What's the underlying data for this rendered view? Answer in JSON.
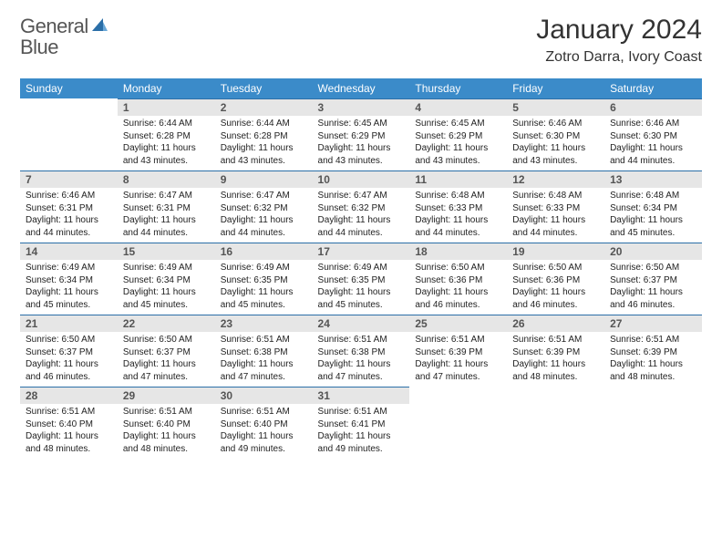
{
  "brand": {
    "word1": "General",
    "word2": "Blue"
  },
  "title": "January 2024",
  "location": "Zotro Darra, Ivory Coast",
  "colors": {
    "header_bg": "#3b8bc9",
    "header_text": "#ffffff",
    "daynum_bg": "#e6e6e6",
    "daynum_text": "#555555",
    "rule": "#2b6fa8",
    "brand_gray": "#555555",
    "brand_blue": "#2b7bbf",
    "body_text": "#222222",
    "page_bg": "#ffffff"
  },
  "typography": {
    "month_title_pt": 30,
    "location_pt": 16,
    "weekday_pt": 12,
    "daynum_pt": 12,
    "body_pt": 10,
    "logo_pt": 22
  },
  "weekdays": [
    "Sunday",
    "Monday",
    "Tuesday",
    "Wednesday",
    "Thursday",
    "Friday",
    "Saturday"
  ],
  "layout": {
    "first_weekday_index": 1,
    "days_in_month": 31,
    "rows": 5,
    "cols": 7
  },
  "days": [
    {
      "n": 1,
      "sunrise": "6:44 AM",
      "sunset": "6:28 PM",
      "daylight": "11 hours and 43 minutes."
    },
    {
      "n": 2,
      "sunrise": "6:44 AM",
      "sunset": "6:28 PM",
      "daylight": "11 hours and 43 minutes."
    },
    {
      "n": 3,
      "sunrise": "6:45 AM",
      "sunset": "6:29 PM",
      "daylight": "11 hours and 43 minutes."
    },
    {
      "n": 4,
      "sunrise": "6:45 AM",
      "sunset": "6:29 PM",
      "daylight": "11 hours and 43 minutes."
    },
    {
      "n": 5,
      "sunrise": "6:46 AM",
      "sunset": "6:30 PM",
      "daylight": "11 hours and 43 minutes."
    },
    {
      "n": 6,
      "sunrise": "6:46 AM",
      "sunset": "6:30 PM",
      "daylight": "11 hours and 44 minutes."
    },
    {
      "n": 7,
      "sunrise": "6:46 AM",
      "sunset": "6:31 PM",
      "daylight": "11 hours and 44 minutes."
    },
    {
      "n": 8,
      "sunrise": "6:47 AM",
      "sunset": "6:31 PM",
      "daylight": "11 hours and 44 minutes."
    },
    {
      "n": 9,
      "sunrise": "6:47 AM",
      "sunset": "6:32 PM",
      "daylight": "11 hours and 44 minutes."
    },
    {
      "n": 10,
      "sunrise": "6:47 AM",
      "sunset": "6:32 PM",
      "daylight": "11 hours and 44 minutes."
    },
    {
      "n": 11,
      "sunrise": "6:48 AM",
      "sunset": "6:33 PM",
      "daylight": "11 hours and 44 minutes."
    },
    {
      "n": 12,
      "sunrise": "6:48 AM",
      "sunset": "6:33 PM",
      "daylight": "11 hours and 44 minutes."
    },
    {
      "n": 13,
      "sunrise": "6:48 AM",
      "sunset": "6:34 PM",
      "daylight": "11 hours and 45 minutes."
    },
    {
      "n": 14,
      "sunrise": "6:49 AM",
      "sunset": "6:34 PM",
      "daylight": "11 hours and 45 minutes."
    },
    {
      "n": 15,
      "sunrise": "6:49 AM",
      "sunset": "6:34 PM",
      "daylight": "11 hours and 45 minutes."
    },
    {
      "n": 16,
      "sunrise": "6:49 AM",
      "sunset": "6:35 PM",
      "daylight": "11 hours and 45 minutes."
    },
    {
      "n": 17,
      "sunrise": "6:49 AM",
      "sunset": "6:35 PM",
      "daylight": "11 hours and 45 minutes."
    },
    {
      "n": 18,
      "sunrise": "6:50 AM",
      "sunset": "6:36 PM",
      "daylight": "11 hours and 46 minutes."
    },
    {
      "n": 19,
      "sunrise": "6:50 AM",
      "sunset": "6:36 PM",
      "daylight": "11 hours and 46 minutes."
    },
    {
      "n": 20,
      "sunrise": "6:50 AM",
      "sunset": "6:37 PM",
      "daylight": "11 hours and 46 minutes."
    },
    {
      "n": 21,
      "sunrise": "6:50 AM",
      "sunset": "6:37 PM",
      "daylight": "11 hours and 46 minutes."
    },
    {
      "n": 22,
      "sunrise": "6:50 AM",
      "sunset": "6:37 PM",
      "daylight": "11 hours and 47 minutes."
    },
    {
      "n": 23,
      "sunrise": "6:51 AM",
      "sunset": "6:38 PM",
      "daylight": "11 hours and 47 minutes."
    },
    {
      "n": 24,
      "sunrise": "6:51 AM",
      "sunset": "6:38 PM",
      "daylight": "11 hours and 47 minutes."
    },
    {
      "n": 25,
      "sunrise": "6:51 AM",
      "sunset": "6:39 PM",
      "daylight": "11 hours and 47 minutes."
    },
    {
      "n": 26,
      "sunrise": "6:51 AM",
      "sunset": "6:39 PM",
      "daylight": "11 hours and 48 minutes."
    },
    {
      "n": 27,
      "sunrise": "6:51 AM",
      "sunset": "6:39 PM",
      "daylight": "11 hours and 48 minutes."
    },
    {
      "n": 28,
      "sunrise": "6:51 AM",
      "sunset": "6:40 PM",
      "daylight": "11 hours and 48 minutes."
    },
    {
      "n": 29,
      "sunrise": "6:51 AM",
      "sunset": "6:40 PM",
      "daylight": "11 hours and 48 minutes."
    },
    {
      "n": 30,
      "sunrise": "6:51 AM",
      "sunset": "6:40 PM",
      "daylight": "11 hours and 49 minutes."
    },
    {
      "n": 31,
      "sunrise": "6:51 AM",
      "sunset": "6:41 PM",
      "daylight": "11 hours and 49 minutes."
    }
  ],
  "labels": {
    "sunrise": "Sunrise:",
    "sunset": "Sunset:",
    "daylight": "Daylight:"
  }
}
